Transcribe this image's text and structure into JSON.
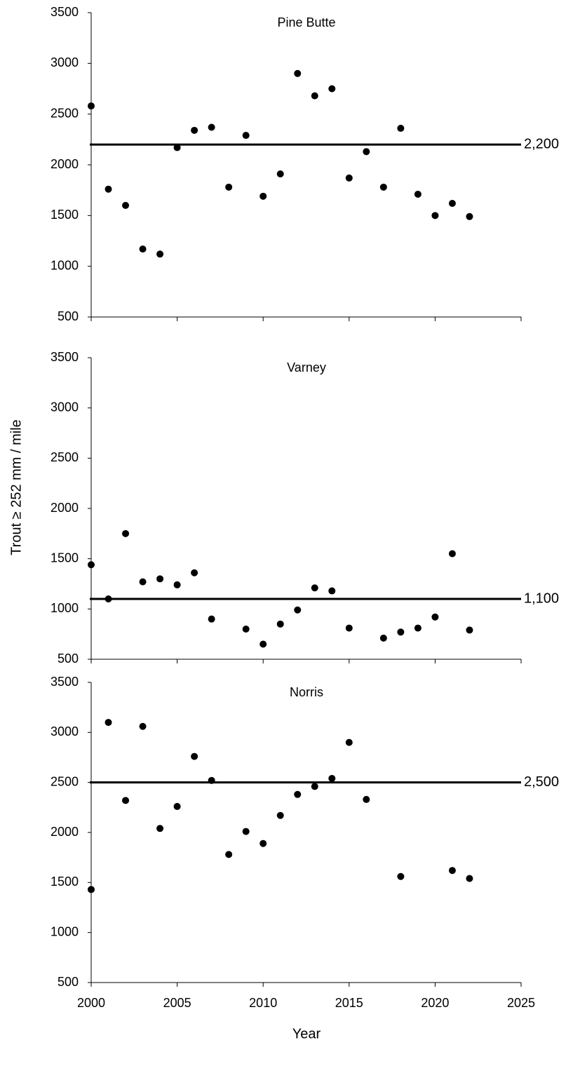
{
  "chart_data": [
    {
      "type": "scatter",
      "title": "Pine Butte",
      "color": "#000000",
      "x": [
        2000,
        2001,
        2002,
        2003,
        2004,
        2005,
        2006,
        2007,
        2008,
        2009,
        2010,
        2011,
        2012,
        2013,
        2014,
        2015,
        2016,
        2017,
        2018,
        2019,
        2020,
        2021,
        2022
      ],
      "values": [
        2580,
        1760,
        1600,
        1170,
        1120,
        2170,
        2340,
        2370,
        1780,
        2290,
        1690,
        1910,
        2900,
        2680,
        2750,
        1870,
        2130,
        1780,
        2360,
        1710,
        1500,
        1620,
        1490
      ],
      "hline": {
        "value": 2200,
        "label": "2,200"
      },
      "xlim": [
        2000,
        2025
      ],
      "ylim": [
        500,
        3500
      ],
      "yticks": [
        500,
        1000,
        1500,
        2000,
        2500,
        3000,
        3500
      ]
    },
    {
      "type": "scatter",
      "title": "Varney",
      "color": "#000000",
      "ylabel": "Trout ≥ 252 mm / mile",
      "x": [
        2000,
        2001,
        2002,
        2003,
        2004,
        2005,
        2006,
        2007,
        2009,
        2010,
        2011,
        2012,
        2013,
        2014,
        2015,
        2017,
        2018,
        2019,
        2020,
        2021,
        2022
      ],
      "values": [
        1440,
        1100,
        1750,
        1270,
        1300,
        1240,
        1360,
        900,
        800,
        650,
        850,
        990,
        1210,
        1180,
        810,
        710,
        770,
        810,
        920,
        1550,
        790
      ],
      "hline": {
        "value": 1100,
        "label": "1,100"
      },
      "xlim": [
        2000,
        2025
      ],
      "ylim": [
        500,
        3500
      ],
      "yticks": [
        500,
        1000,
        1500,
        2000,
        2500,
        3000,
        3500
      ]
    },
    {
      "type": "scatter",
      "title": "Norris",
      "color": "#000000",
      "xlabel": "Year",
      "x": [
        2000,
        2001,
        2002,
        2003,
        2004,
        2005,
        2006,
        2007,
        2008,
        2009,
        2010,
        2011,
        2012,
        2013,
        2014,
        2015,
        2016,
        2018,
        2021,
        2022
      ],
      "values": [
        1430,
        3100,
        2320,
        3060,
        2040,
        2260,
        2760,
        2520,
        1780,
        2010,
        1890,
        2170,
        2380,
        2460,
        2540,
        2900,
        2330,
        1560,
        1620,
        1540
      ],
      "hline": {
        "value": 2500,
        "label": "2,500"
      },
      "xlim": [
        2000,
        2025
      ],
      "ylim": [
        500,
        3500
      ],
      "yticks": [
        500,
        1000,
        1500,
        2000,
        2500,
        3000,
        3500
      ],
      "xticks": [
        2000,
        2005,
        2010,
        2015,
        2020,
        2025
      ]
    }
  ]
}
